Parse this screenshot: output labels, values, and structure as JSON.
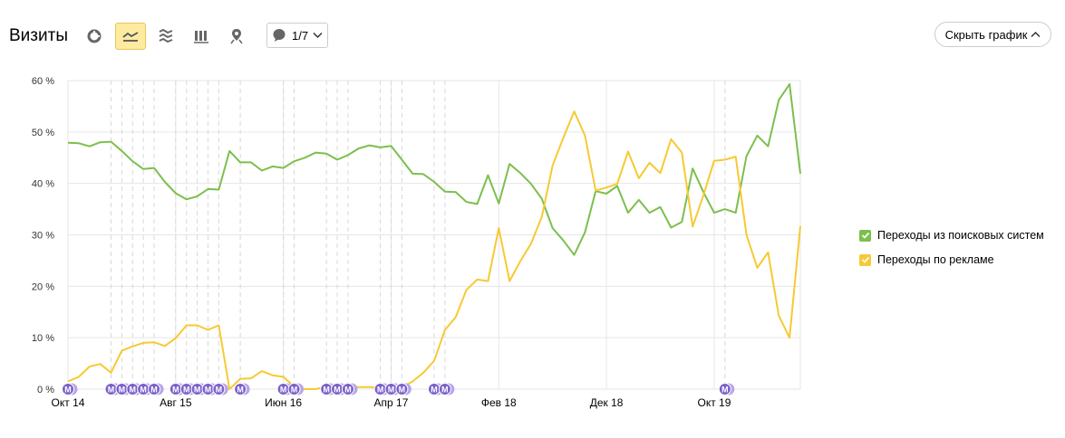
{
  "header": {
    "title": "Визиты",
    "segments_label": "1/7",
    "hide_chart_label": "Скрыть график"
  },
  "toolbar": [
    {
      "name": "pie-chart-icon",
      "active": false
    },
    {
      "name": "line-chart-icon",
      "active": true
    },
    {
      "name": "area-chart-icon",
      "active": false
    },
    {
      "name": "column-chart-icon",
      "active": false
    },
    {
      "name": "map-icon",
      "active": false
    }
  ],
  "colors": {
    "green": "#7cbf4d",
    "yellow": "#f7c933",
    "note": "#7b61c9",
    "grid": "#e6e6e6",
    "active_bg": "#ffeba0"
  },
  "chart_data": {
    "type": "line",
    "ylim": [
      0,
      60
    ],
    "yticks": [
      "0 %",
      "10 %",
      "20 %",
      "30 %",
      "40 %",
      "50 %",
      "60 %"
    ],
    "x_tick_labels": [
      {
        "label": "Окт 14",
        "index": 0
      },
      {
        "label": "Авг 15",
        "index": 10
      },
      {
        "label": "Июн 16",
        "index": 20
      },
      {
        "label": "Апр 17",
        "index": 30
      },
      {
        "label": "Фев 18",
        "index": 40
      },
      {
        "label": "Дек 18",
        "index": 50
      },
      {
        "label": "Окт 19",
        "index": 60
      }
    ],
    "series": [
      {
        "name": "Переходы из поисковых систем",
        "color": "#7cbf4d",
        "values": [
          47.9,
          47.8,
          47.2,
          48.0,
          48.1,
          46.3,
          44.3,
          42.8,
          43.0,
          40.3,
          38.1,
          36.9,
          37.5,
          38.9,
          38.8,
          46.3,
          44.1,
          44.1,
          42.5,
          43.3,
          43.0,
          44.3,
          45.0,
          46.0,
          45.8,
          44.6,
          45.5,
          46.8,
          47.4,
          47.0,
          47.3,
          44.6,
          41.9,
          41.8,
          40.3,
          38.4,
          38.3,
          36.4,
          36.0,
          41.6,
          36.1,
          43.8,
          42.0,
          39.9,
          37.0,
          31.3,
          28.9,
          26.1,
          30.5,
          38.5,
          38.0,
          39.5,
          34.3,
          36.8,
          34.3,
          35.4,
          31.4,
          32.5,
          42.9,
          38.3,
          34.3,
          35.0,
          34.3,
          45.3,
          49.3,
          47.2,
          56.2,
          59.3,
          41.9
        ]
      },
      {
        "name": "Переходы по рекламе",
        "color": "#f7c933",
        "values": [
          1.5,
          2.4,
          4.4,
          4.9,
          3.2,
          7.5,
          8.3,
          9.0,
          9.1,
          8.4,
          9.9,
          12.4,
          12.4,
          11.5,
          12.4,
          0.0,
          2.0,
          2.1,
          3.5,
          2.7,
          2.4,
          0.5,
          0.0,
          0.0,
          0.5,
          0.5,
          0.5,
          0.4,
          0.4,
          0.2,
          0.0,
          0.4,
          1.5,
          3.2,
          5.5,
          11.5,
          14.0,
          19.3,
          21.3,
          21.0,
          31.3,
          21.0,
          24.9,
          28.3,
          33.5,
          43.5,
          48.9,
          54.0,
          49.3,
          38.6,
          39.2,
          39.9,
          46.2,
          41.0,
          44.0,
          42.0,
          48.6,
          46.0,
          31.6,
          37.7,
          44.4,
          44.6,
          45.2,
          30.0,
          23.6,
          26.6,
          14.3,
          10.0,
          31.7
        ]
      }
    ],
    "annotation_label": "М",
    "annotation_indices": [
      0,
      4,
      5,
      6,
      7,
      8,
      10,
      11,
      12,
      13,
      14,
      16,
      20,
      21,
      24,
      25,
      26,
      29,
      30,
      31,
      34,
      35,
      61
    ]
  }
}
